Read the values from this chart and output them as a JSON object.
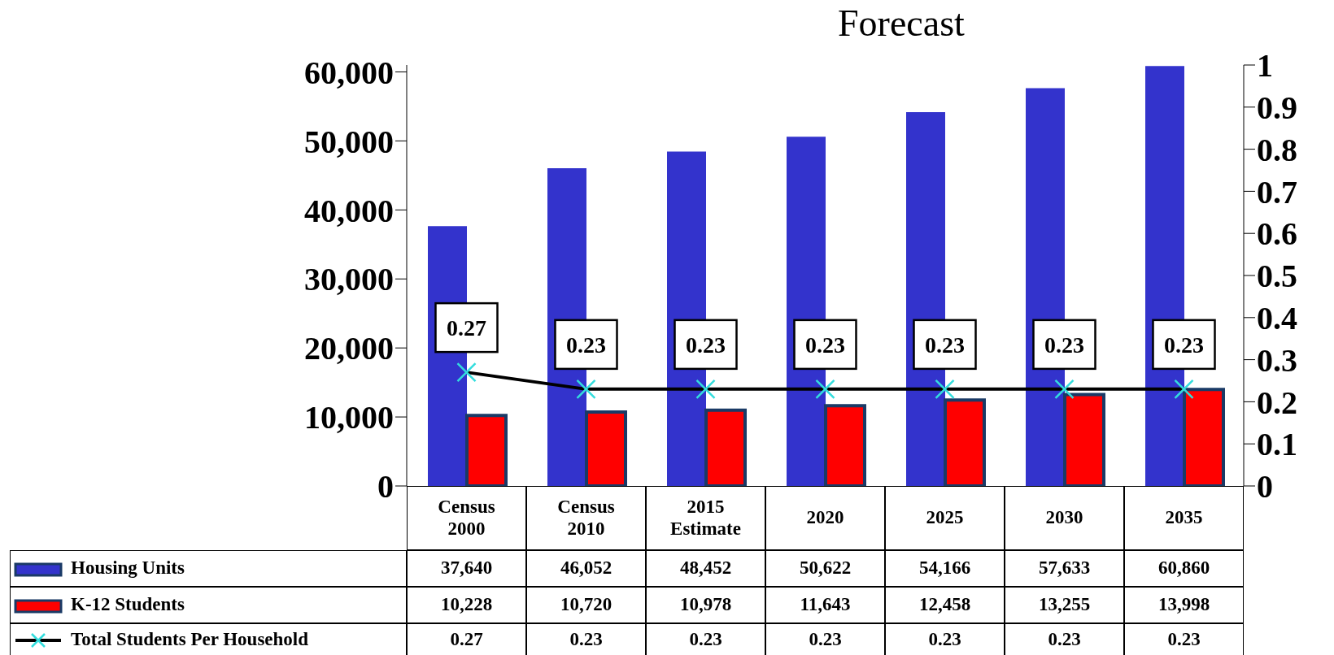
{
  "chart_data": {
    "type": "bar",
    "title": "Forecast",
    "categories": [
      "Census\n2000",
      "Census\n2010",
      "2015\nEstimate",
      "2020",
      "2025",
      "2030",
      "2035"
    ],
    "series": [
      {
        "name": "Housing Units",
        "color": "#3333cc",
        "values": [
          37640,
          46052,
          48452,
          50622,
          54166,
          57633,
          60860
        ],
        "value_labels": [
          "37,640",
          "46,052",
          "48,452",
          "50,622",
          "54,166",
          "57,633",
          "60,860"
        ]
      },
      {
        "name": "K-12 Students",
        "color": "#ff0000",
        "values": [
          10228,
          10720,
          10978,
          11643,
          12458,
          13255,
          13998
        ],
        "value_labels": [
          "10,228",
          "10,720",
          "10,978",
          "11,643",
          "12,458",
          "13,255",
          "13,998"
        ]
      },
      {
        "name": "Total Students Per Household",
        "type": "line",
        "axis": "y2",
        "color": "#000000",
        "marker": "cross",
        "values": [
          0.27,
          0.23,
          0.23,
          0.23,
          0.23,
          0.23,
          0.23
        ],
        "value_labels": [
          "0.27",
          "0.23",
          "0.23",
          "0.23",
          "0.23",
          "0.23",
          "0.23"
        ]
      }
    ],
    "ylim": [
      0,
      61000
    ],
    "yticks": [
      0,
      {
        "value": 10000,
        "label": "10,000"
      },
      {
        "value": 20000,
        "label": "20,000"
      },
      {
        "value": 30000,
        "label": "30,000"
      },
      {
        "value": 40000,
        "label": "40,000"
      },
      {
        "value": 50000,
        "label": "50,000"
      },
      {
        "value": 60000,
        "label": "60,000"
      }
    ],
    "y2lim": [
      0,
      1
    ],
    "y2ticks": [
      0,
      0.1,
      0.2,
      0.3,
      0.4,
      0.5,
      0.6,
      0.7,
      0.8,
      0.9,
      1
    ],
    "legend": "bottom",
    "grid": false
  }
}
